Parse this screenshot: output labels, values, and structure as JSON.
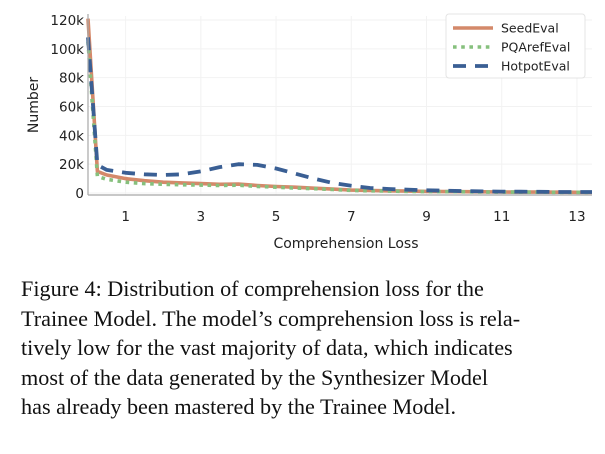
{
  "chart_data": {
    "type": "line",
    "title": "",
    "xlabel": "Comprehension Loss",
    "ylabel": "Number",
    "xlim": [
      0,
      13.4
    ],
    "ylim": [
      0,
      120000
    ],
    "xticks": [
      1,
      3,
      5,
      7,
      9,
      11,
      13
    ],
    "xtick_labels": [
      "1",
      "3",
      "5",
      "7",
      "9",
      "11",
      "13"
    ],
    "yticks": [
      0,
      20000,
      40000,
      60000,
      80000,
      100000,
      120000
    ],
    "ytick_labels": [
      "0",
      "20k",
      "40k",
      "60k",
      "80k",
      "100k",
      "120k"
    ],
    "grid": true,
    "legend_position": "top-right",
    "x": [
      0,
      0.25,
      0.5,
      1,
      1.5,
      2,
      2.5,
      3,
      3.5,
      4,
      4.5,
      5,
      5.5,
      6,
      6.5,
      7,
      7.5,
      8,
      8.5,
      9,
      9.5,
      10,
      10.5,
      11,
      11.5,
      12,
      12.5,
      13,
      13.4
    ],
    "series": [
      {
        "name": "SeedEval",
        "color": "#d4896a",
        "style": "solid",
        "values": [
          121000,
          15000,
          12500,
          10000,
          8500,
          7500,
          7000,
          6500,
          6000,
          6200,
          5200,
          4500,
          4000,
          3300,
          2700,
          2000,
          1700,
          1500,
          1300,
          1100,
          1000,
          900,
          800,
          700,
          650,
          600,
          550,
          500,
          500
        ]
      },
      {
        "name": "PQArefEval",
        "color": "#86c07d",
        "style": "dotted",
        "values": [
          105000,
          11500,
          9500,
          7500,
          6500,
          6000,
          5700,
          5500,
          5200,
          5400,
          4600,
          4000,
          3500,
          3000,
          2400,
          1800,
          1500,
          1300,
          1100,
          1000,
          900,
          800,
          700,
          650,
          600,
          550,
          500,
          500,
          500
        ]
      },
      {
        "name": "HotpotEval",
        "color": "#3a5f94",
        "style": "dashed",
        "values": [
          108000,
          19500,
          16000,
          14000,
          13000,
          12500,
          13000,
          15000,
          18000,
          20000,
          19500,
          17000,
          13500,
          10000,
          7000,
          5000,
          3500,
          2800,
          2300,
          1900,
          1600,
          1300,
          1100,
          1000,
          900,
          800,
          700,
          700,
          700
        ]
      }
    ]
  },
  "caption": {
    "lines": [
      "Figure 4: Distribution of comprehension loss for the",
      "Trainee Model. The model’s comprehension loss is rela-",
      "tively low for the vast majority of data, which indicates",
      "most of the data generated by the Synthesizer Model",
      "has already been mastered by the Trainee Model."
    ]
  }
}
